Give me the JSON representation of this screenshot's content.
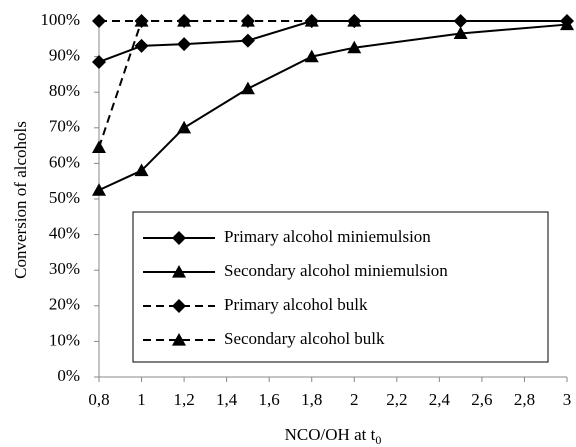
{
  "chart_data": {
    "type": "line",
    "y_label": "Conversion of alcohols",
    "x_label": "NCO/OH at t",
    "x_label_sub": "0",
    "x": [
      0.8,
      1,
      1.2,
      1.5,
      1.8,
      2,
      2.5,
      3
    ],
    "series": [
      {
        "name": "Primary alcohol miniemulsion",
        "color": "#000000",
        "marker": "diamond",
        "dashed": false,
        "values": [
          88.5,
          93,
          93.5,
          94.5,
          100,
          100,
          100,
          100
        ]
      },
      {
        "name": "Secondary alcohol miniemulsion",
        "color": "#000000",
        "marker": "triangle",
        "dashed": false,
        "values": [
          52.5,
          58,
          70,
          81,
          90,
          92.5,
          96.5,
          99
        ]
      },
      {
        "name": "Primary alcohol bulk",
        "color": "#000000",
        "marker": "diamond",
        "dashed": true,
        "values": [
          100,
          100,
          100,
          100,
          100,
          100,
          null,
          null
        ]
      },
      {
        "name": "Secondary alcohol bulk",
        "color": "#000000",
        "marker": "triangle",
        "dashed": true,
        "values": [
          64.5,
          100,
          100,
          100,
          100,
          100,
          null,
          null
        ]
      }
    ],
    "xlim": [
      0.8,
      3
    ],
    "xticks": [
      {
        "value": 0.8,
        "label": "0,8"
      },
      1,
      {
        "value": 1.2,
        "label": "1,2"
      },
      {
        "value": 1.4,
        "label": "1,4"
      },
      {
        "value": 1.6,
        "label": "1,6"
      },
      {
        "value": 1.8,
        "label": "1,8"
      },
      2,
      {
        "value": 2.2,
        "label": "2,2"
      },
      {
        "value": 2.4,
        "label": "2,4"
      },
      {
        "value": 2.6,
        "label": "2,6"
      },
      {
        "value": 2.8,
        "label": "2,8"
      },
      3
    ],
    "ylim": [
      0,
      100
    ],
    "yticks": [
      {
        "value": 0,
        "label": "0%"
      },
      {
        "value": 10,
        "label": "10%"
      },
      {
        "value": 20,
        "label": "20%"
      },
      {
        "value": 30,
        "label": "30%"
      },
      {
        "value": 40,
        "label": "40%"
      },
      {
        "value": 50,
        "label": "50%"
      },
      {
        "value": 60,
        "label": "60%"
      },
      {
        "value": 70,
        "label": "70%"
      },
      {
        "value": 80,
        "label": "80%"
      },
      {
        "value": 90,
        "label": "90%"
      },
      {
        "value": 100,
        "label": "100%"
      }
    ],
    "grid": false
  }
}
